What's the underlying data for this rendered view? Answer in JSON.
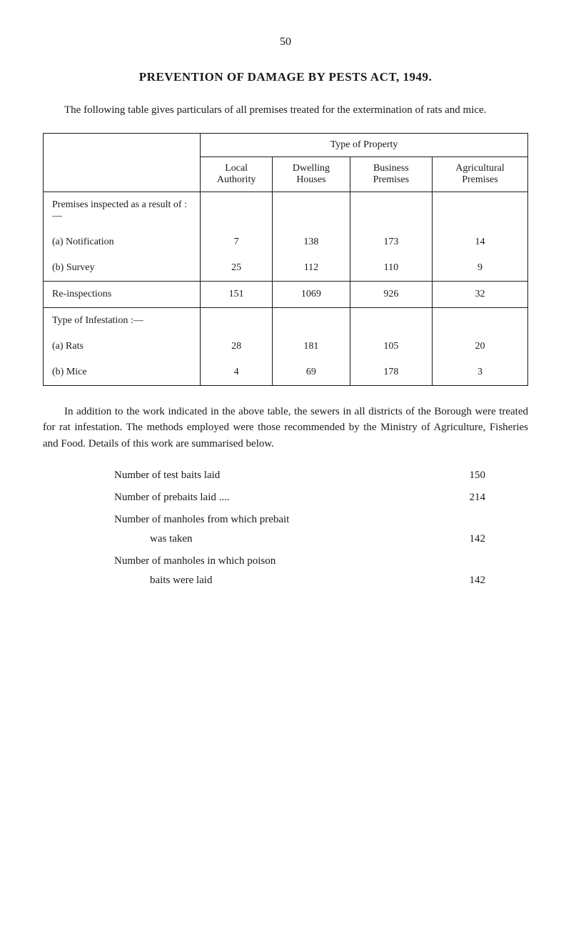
{
  "page_number": "50",
  "title": "PREVENTION OF DAMAGE BY PESTS ACT, 1949.",
  "intro": "The following table gives particulars of all premises treated for the extermination of rats and mice.",
  "table": {
    "type": "table",
    "main_header": "Type of Property",
    "columns": [
      "Local Authority",
      "Dwelling Houses",
      "Business Premises",
      "Agricultural Premises"
    ],
    "sections": [
      {
        "header": "Premises inspected as a result of :—",
        "rows": [
          {
            "label": "(a)  Notification",
            "values": [
              "7",
              "138",
              "173",
              "14"
            ]
          },
          {
            "label": "(b)  Survey",
            "values": [
              "25",
              "112",
              "110",
              "9"
            ]
          }
        ]
      },
      {
        "header": null,
        "rows": [
          {
            "label": "Re-inspections",
            "values": [
              "151",
              "1069",
              "926",
              "32"
            ]
          }
        ]
      },
      {
        "header": "Type of Infestation :—",
        "rows": [
          {
            "label": "(a)  Rats",
            "values": [
              "28",
              "181",
              "105",
              "20"
            ]
          },
          {
            "label": "(b)  Mice",
            "values": [
              "4",
              "69",
              "178",
              "3"
            ]
          }
        ]
      }
    ],
    "border_color": "#1a1a1a",
    "background_color": "#ffffff",
    "font_size": 14
  },
  "body_text": "In addition to the work indicated in the above table, the sewers in all districts of the Borough were treated for rat infestation. The methods employed were those recommended by the Ministry of Agriculture, Fisheries and Food. Details of this work are summarised below.",
  "stats": [
    {
      "label": "Number of test baits laid",
      "value": "150"
    },
    {
      "label": "Number of prebaits laid ....",
      "value": "214"
    },
    {
      "label_line1": "Number of manholes from which prebait",
      "label_line2": "was taken",
      "value": "142"
    },
    {
      "label_line1": "Number of manholes in which poison",
      "label_line2": "baits were laid",
      "value": "142"
    }
  ]
}
